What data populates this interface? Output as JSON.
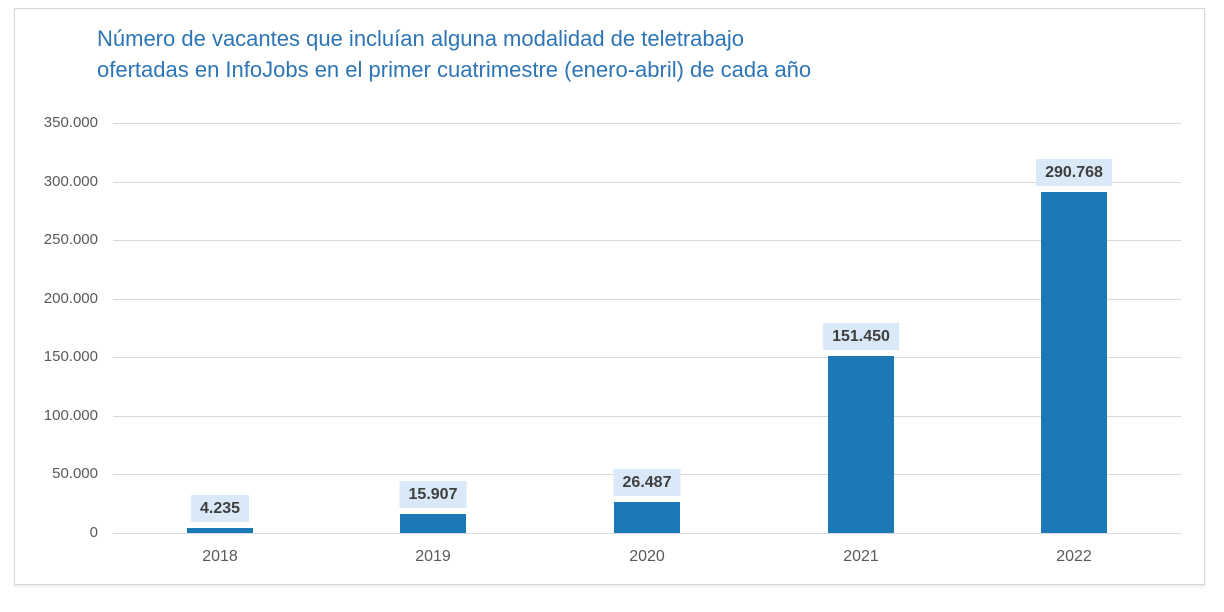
{
  "chart": {
    "title_lines": [
      "Número de vacantes que incluían alguna modalidad de teletrabajo",
      "ofertadas en InfoJobs en el primer cuatrimestre (enero-abril) de cada año"
    ]
  },
  "chart_data": {
    "type": "bar",
    "title": "Número de vacantes que incluían alguna modalidad de teletrabajo ofertadas en InfoJobs en el primer cuatrimestre (enero-abril) de cada año",
    "categories": [
      "2018",
      "2019",
      "2020",
      "2021",
      "2022"
    ],
    "values": [
      4235,
      15907,
      26487,
      151450,
      290768
    ],
    "value_labels": [
      "4.235",
      "15.907",
      "26.487",
      "151.450",
      "290.768"
    ],
    "xlabel": "",
    "ylabel": "",
    "ylim": [
      0,
      350000
    ],
    "ytick_step": 50000,
    "ytick_labels": [
      "0",
      "50.000",
      "100.000",
      "150.000",
      "200.000",
      "250.000",
      "300.000",
      "350.000"
    ],
    "grid": true,
    "legend": false,
    "colors": {
      "bar": "#1b79b5",
      "value_label_box": "#d9e9f7",
      "value_label_text": "#3f3f3f",
      "title": "#2e75b6",
      "axis_text": "#595959",
      "gridline": "#d9d9d9"
    }
  }
}
